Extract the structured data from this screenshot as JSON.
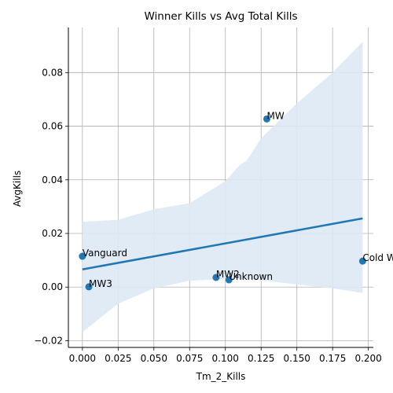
{
  "chart_data": {
    "type": "scatter",
    "title": "Winner Kills vs Avg Total Kills",
    "xlabel": "Tm_2_Kills",
    "ylabel": "AvgKills",
    "xlim": [
      -0.0098,
      0.2035
    ],
    "ylim": [
      -0.0225,
      0.0968
    ],
    "xticks": [
      0.0,
      0.025,
      0.05,
      0.075,
      0.1,
      0.125,
      0.15,
      0.175,
      0.2
    ],
    "xtick_labels": [
      "0.000",
      "0.025",
      "0.050",
      "0.075",
      "0.100",
      "0.125",
      "0.150",
      "0.175",
      "0.200"
    ],
    "yticks": [
      -0.02,
      0.0,
      0.02,
      0.04,
      0.06,
      0.08
    ],
    "ytick_labels": [
      "−0.02",
      "0.00",
      "0.02",
      "0.04",
      "0.06",
      "0.08"
    ],
    "grid": true,
    "points": [
      {
        "label": "Vanguard",
        "x": 0.0,
        "y": 0.0115
      },
      {
        "label": "MW3",
        "x": 0.0045,
        "y": 0.0001
      },
      {
        "label": "MW2",
        "x": 0.0935,
        "y": 0.0036
      },
      {
        "label": "Unknown",
        "x": 0.1025,
        "y": 0.0027
      },
      {
        "label": "MW",
        "x": 0.129,
        "y": 0.0627
      },
      {
        "label": "Cold War",
        "x": 0.196,
        "y": 0.0097
      }
    ],
    "regression": {
      "x": [
        0.0,
        0.196
      ],
      "y": [
        0.0066,
        0.0256
      ]
    },
    "confidence_band": {
      "x": [
        0.0,
        0.025,
        0.05,
        0.075,
        0.1,
        0.11,
        0.115,
        0.125,
        0.15,
        0.175,
        0.196
      ],
      "upper": [
        0.0243,
        0.0251,
        0.029,
        0.0313,
        0.0395,
        0.0455,
        0.0472,
        0.0555,
        0.0685,
        0.08,
        0.0915
      ],
      "lower": [
        -0.0168,
        -0.0062,
        -0.0005,
        0.0024,
        0.003,
        0.003,
        0.003,
        0.0025,
        0.001,
        -0.0005,
        -0.0022
      ]
    },
    "colors": {
      "point": "#1f77b4",
      "line": "#1f77b4",
      "band": "#dde9f4",
      "grid": "#b0b0b0"
    }
  }
}
